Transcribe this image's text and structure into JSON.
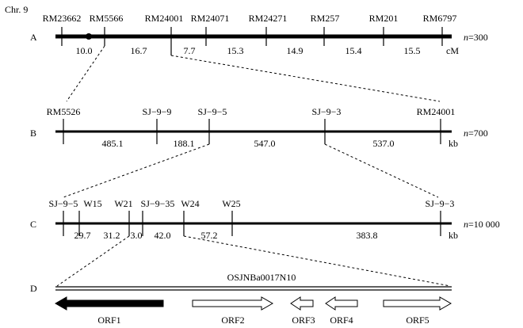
{
  "chromosome": "Chr. 9",
  "rows": {
    "A": {
      "letter": "A",
      "markers": [
        "RM23662",
        "RM5566",
        "RM24001",
        "RM24071",
        "RM24271",
        "RM257",
        "RM201",
        "RM6797"
      ],
      "intervals": [
        "10.0",
        "16.7",
        "7.7",
        "15.3",
        "14.9",
        "15.4",
        "15.5"
      ],
      "unit": "cM",
      "population": "=300"
    },
    "B": {
      "letter": "B",
      "markers": [
        "RM5526",
        "SJ−9−9",
        "SJ−9−5",
        "SJ−9−3",
        "RM24001"
      ],
      "intervals": [
        "485.1",
        "188.1",
        "547.0",
        "537.0"
      ],
      "unit": "kb",
      "population": "=700"
    },
    "C": {
      "letter": "C",
      "markers": [
        "SJ−9−5",
        "W15",
        "W21",
        "SJ−9−35",
        "W24",
        "W25",
        "SJ−9−3"
      ],
      "intervals": [
        "29.7",
        "31.2",
        "3.0",
        "42.0",
        "57.2",
        "383.8"
      ],
      "unit": "kb",
      "population": "=10 000"
    },
    "D": {
      "letter": "D",
      "clone": "OSJNBa0017N10",
      "orfs": [
        {
          "label": "ORF1",
          "direction": "left",
          "filled": true
        },
        {
          "label": "ORF2",
          "direction": "right",
          "filled": false
        },
        {
          "label": "ORF3",
          "direction": "left",
          "filled": false
        },
        {
          "label": "ORF4",
          "direction": "left",
          "filled": false
        },
        {
          "label": "ORF5",
          "direction": "right",
          "filled": false
        }
      ]
    }
  },
  "population_prefix": "n"
}
